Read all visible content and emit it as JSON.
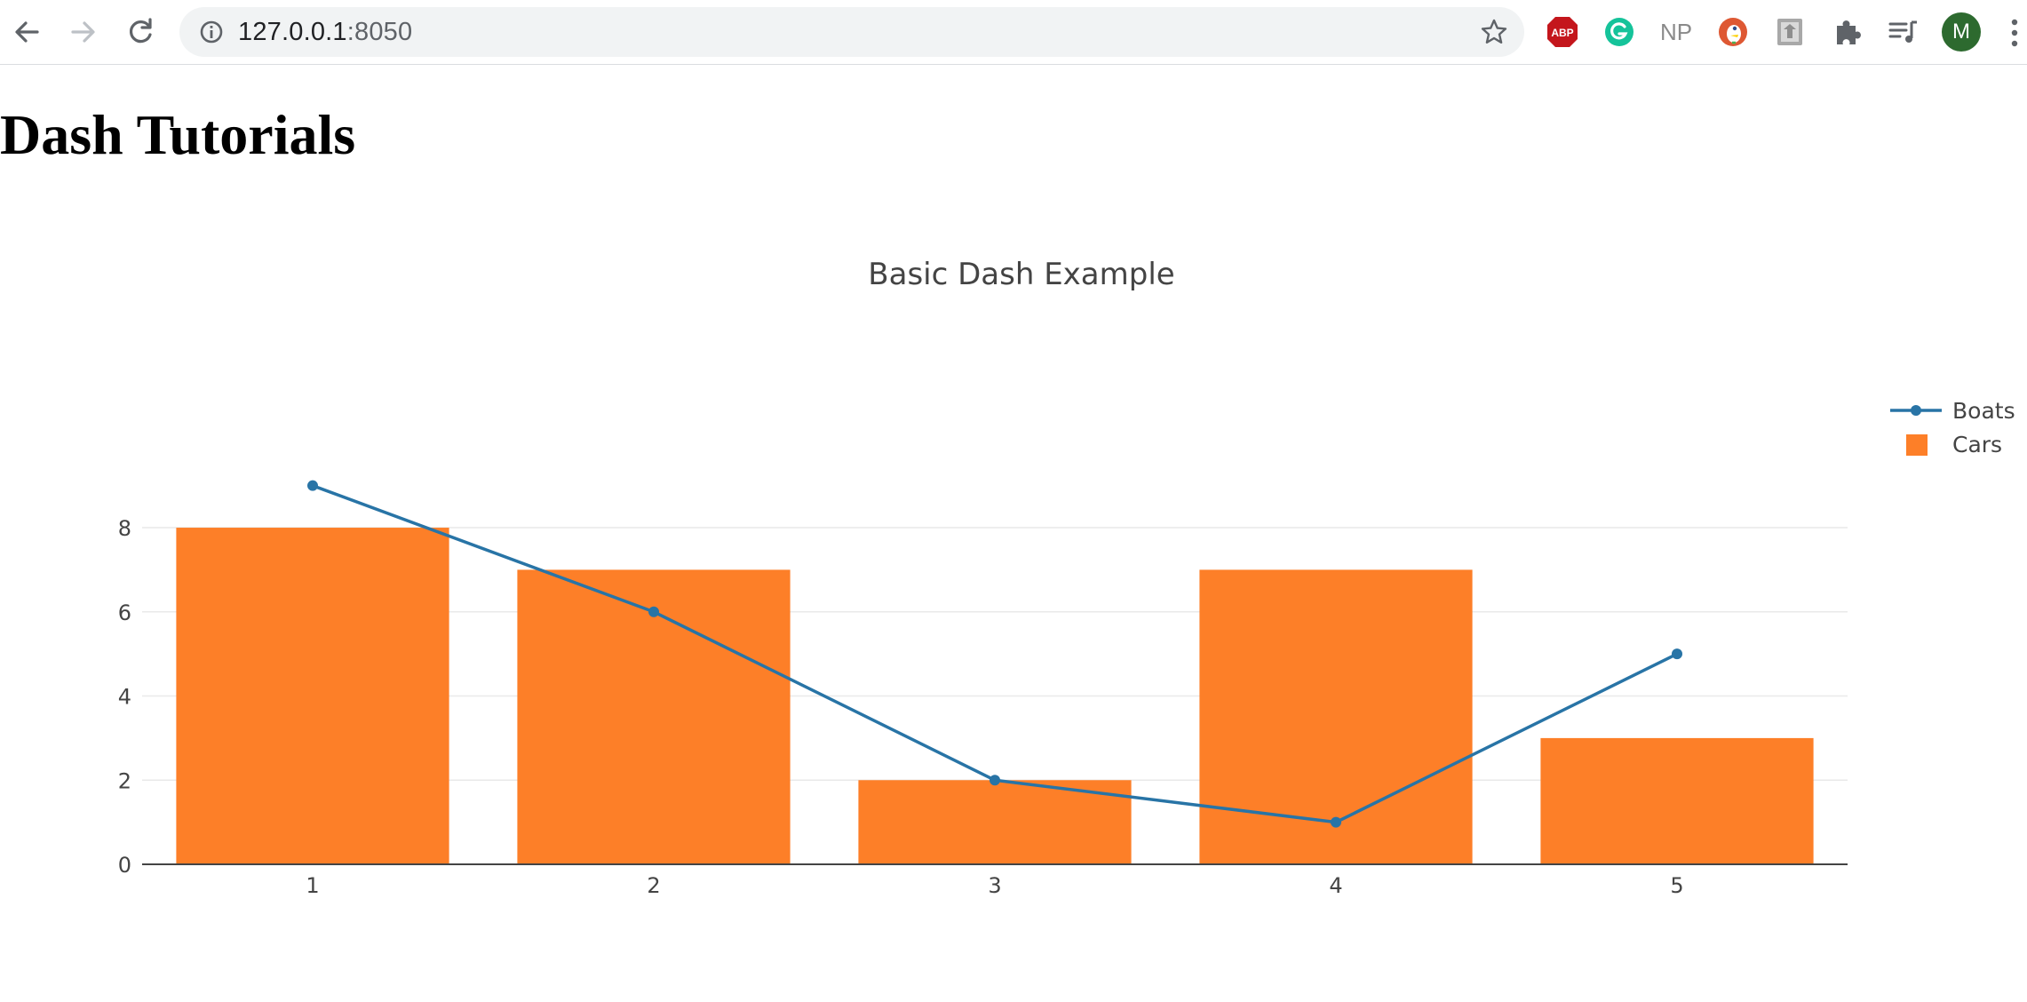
{
  "browser": {
    "url_host": "127.0.0.1",
    "url_port": ":8050",
    "avatar_letter": "M",
    "extensions": [
      "adblock-plus-icon",
      "grammarly-icon",
      "np-icon",
      "duckduckgo-icon",
      "clipboard-extension-icon",
      "puzzle-extensions-icon",
      "media-queue-icon"
    ],
    "ext_labels": {
      "abp": "ABP",
      "np": "NP"
    }
  },
  "page": {
    "title": "Dash Tutorials"
  },
  "chart_data": {
    "type": "bar",
    "title": "Basic Dash Example",
    "xlabel": "",
    "ylabel": "",
    "categories": [
      1,
      2,
      3,
      4,
      5
    ],
    "ylim": [
      0,
      9.5
    ],
    "yticks": [
      0,
      2,
      4,
      6,
      8
    ],
    "grid": true,
    "legend_position": "top-right",
    "series": [
      {
        "name": "Boats",
        "type": "line",
        "color": "#2874a6",
        "values": [
          9,
          6,
          2,
          1,
          5
        ]
      },
      {
        "name": "Cars",
        "type": "bar",
        "color": "#fd7f28",
        "values": [
          8,
          7,
          2,
          7,
          3
        ]
      }
    ]
  }
}
